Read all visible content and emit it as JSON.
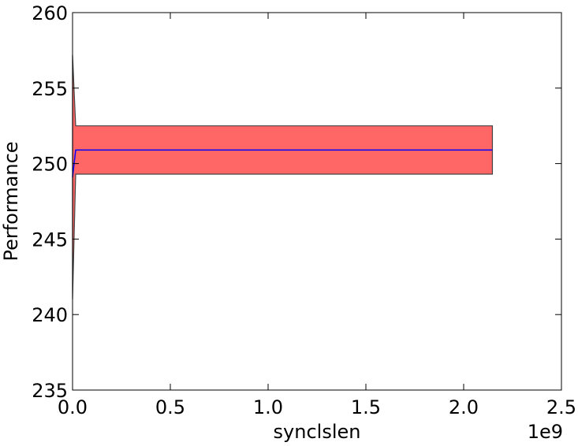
{
  "chart_data": {
    "type": "area",
    "xlabel": "synclslen",
    "ylabel": "Performance",
    "x_offset_label": "1e9",
    "xlim": [
      0,
      2.5
    ],
    "ylim": [
      235,
      260
    ],
    "x_ticks": [
      0.0,
      0.5,
      1.0,
      1.5,
      2.0,
      2.5
    ],
    "x_tick_labels": [
      "0.0",
      "0.5",
      "1.0",
      "1.5",
      "2.0",
      "2.5"
    ],
    "y_ticks": [
      235,
      240,
      245,
      250,
      255,
      260
    ],
    "y_tick_labels": [
      "235",
      "240",
      "245",
      "250",
      "255",
      "260"
    ],
    "grid": false,
    "series": [
      {
        "mean_color": "#0000ff",
        "band_color": "#ff6666",
        "x": [
          0.0,
          0.016,
          2.147
        ],
        "mean": [
          249.1,
          250.9,
          250.9
        ],
        "upper": [
          257.2,
          252.5,
          252.5
        ],
        "lower": [
          241.0,
          249.3,
          249.3
        ]
      }
    ]
  }
}
